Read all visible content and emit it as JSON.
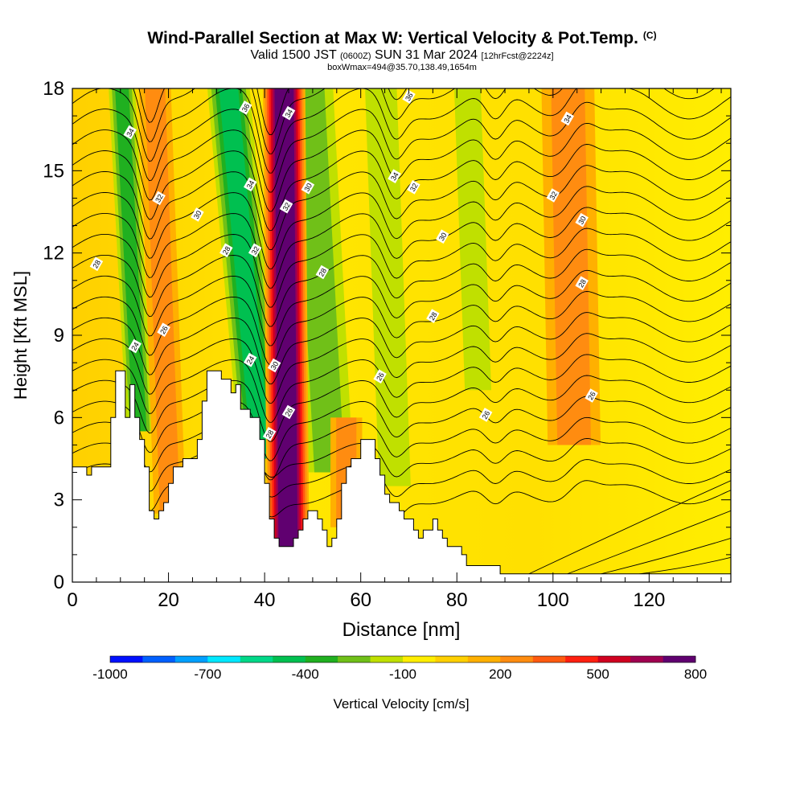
{
  "header": {
    "title": "Wind-Parallel Section at Max W: Vertical Velocity & Pot.Temp.",
    "copyright": "(C)",
    "valid_prefix": "Valid 1500 JST",
    "valid_utc": "(0600Z)",
    "valid_date": "SUN 31 Mar 2024",
    "forecast": "[12hrFcst@2224z]",
    "box_info": "boxWmax=494@35.70,138.49,1654m"
  },
  "chart_data": {
    "type": "contour-section",
    "xlabel": "Distance [nm]",
    "ylabel": "Height [Kft MSL]",
    "xlim": [
      0,
      137
    ],
    "ylim": [
      0,
      18
    ],
    "x_ticks": [
      "0",
      "20",
      "40",
      "60",
      "80",
      "100",
      "120"
    ],
    "x_tick_values": [
      0,
      20,
      40,
      60,
      80,
      100,
      120
    ],
    "y_ticks": [
      "0",
      "3",
      "6",
      "9",
      "12",
      "15",
      "18"
    ],
    "y_tick_values": [
      0,
      3,
      6,
      9,
      12,
      15,
      18
    ],
    "colorbar": {
      "label": "Vertical Velocity [cm/s]",
      "tick_labels": [
        "-1000",
        "-700",
        "-400",
        "-100",
        "200",
        "500",
        "800"
      ],
      "colors": [
        "#0010ff",
        "#0060ff",
        "#00a0ff",
        "#00e8ff",
        "#00d888",
        "#00c050",
        "#20b020",
        "#70c018",
        "#c0e000",
        "#ffee00",
        "#ffd000",
        "#ffb000",
        "#ff8c10",
        "#ff5a10",
        "#ff2010",
        "#d00020",
        "#a00050",
        "#600070"
      ]
    },
    "terrain": [
      [
        0,
        4.2
      ],
      [
        3,
        4.2
      ],
      [
        3,
        3.9
      ],
      [
        4,
        3.9
      ],
      [
        4,
        4.2
      ],
      [
        8,
        4.2
      ],
      [
        8,
        6.0
      ],
      [
        9,
        6.0
      ],
      [
        9,
        7.7
      ],
      [
        11,
        7.7
      ],
      [
        11,
        6.0
      ],
      [
        12,
        6.0
      ],
      [
        12,
        7.2
      ],
      [
        13,
        7.2
      ],
      [
        13,
        6.0
      ],
      [
        14,
        6.0
      ],
      [
        14,
        5.2
      ],
      [
        15,
        5.2
      ],
      [
        15,
        4.2
      ],
      [
        16,
        4.2
      ],
      [
        16,
        2.6
      ],
      [
        17,
        2.6
      ],
      [
        17,
        2.3
      ],
      [
        18,
        2.3
      ],
      [
        18,
        2.6
      ],
      [
        19,
        2.6
      ],
      [
        19,
        2.9
      ],
      [
        20,
        2.9
      ],
      [
        20,
        3.6
      ],
      [
        21,
        3.6
      ],
      [
        21,
        4.2
      ],
      [
        23,
        4.2
      ],
      [
        23,
        4.5
      ],
      [
        26,
        4.5
      ],
      [
        26,
        5.2
      ],
      [
        27,
        5.2
      ],
      [
        27,
        6.6
      ],
      [
        28,
        6.6
      ],
      [
        28,
        7.7
      ],
      [
        31,
        7.7
      ],
      [
        31,
        7.4
      ],
      [
        33,
        7.4
      ],
      [
        33,
        6.9
      ],
      [
        34,
        6.9
      ],
      [
        34,
        7.2
      ],
      [
        35,
        7.2
      ],
      [
        35,
        6.3
      ],
      [
        37,
        6.3
      ],
      [
        37,
        6.0
      ],
      [
        39,
        6.0
      ],
      [
        39,
        5.2
      ],
      [
        40,
        5.2
      ],
      [
        40,
        3.6
      ],
      [
        41,
        3.6
      ],
      [
        41,
        2.3
      ],
      [
        42,
        2.3
      ],
      [
        42,
        1.6
      ],
      [
        43,
        1.6
      ],
      [
        43,
        1.3
      ],
      [
        46,
        1.3
      ],
      [
        46,
        1.6
      ],
      [
        47,
        1.6
      ],
      [
        47,
        1.9
      ],
      [
        48,
        1.9
      ],
      [
        48,
        2.3
      ],
      [
        49,
        2.3
      ],
      [
        49,
        2.6
      ],
      [
        51,
        2.6
      ],
      [
        51,
        2.3
      ],
      [
        52,
        2.3
      ],
      [
        52,
        1.9
      ],
      [
        53,
        1.9
      ],
      [
        53,
        1.3
      ],
      [
        54,
        1.3
      ],
      [
        54,
        1.6
      ],
      [
        55,
        1.6
      ],
      [
        55,
        2.3
      ],
      [
        56,
        2.3
      ],
      [
        56,
        3.6
      ],
      [
        57,
        3.6
      ],
      [
        57,
        4.2
      ],
      [
        58,
        4.2
      ],
      [
        58,
        4.5
      ],
      [
        60,
        4.5
      ],
      [
        60,
        5.2
      ],
      [
        63,
        5.2
      ],
      [
        63,
        4.5
      ],
      [
        64,
        4.5
      ],
      [
        64,
        3.9
      ],
      [
        65,
        3.9
      ],
      [
        65,
        3.2
      ],
      [
        66,
        3.2
      ],
      [
        66,
        2.9
      ],
      [
        68,
        2.9
      ],
      [
        68,
        2.6
      ],
      [
        69,
        2.6
      ],
      [
        69,
        2.3
      ],
      [
        71,
        2.3
      ],
      [
        71,
        1.9
      ],
      [
        72,
        1.9
      ],
      [
        72,
        1.6
      ],
      [
        73,
        1.6
      ],
      [
        73,
        1.9
      ],
      [
        75,
        1.9
      ],
      [
        75,
        2.3
      ],
      [
        76,
        2.3
      ],
      [
        76,
        1.9
      ],
      [
        77,
        1.9
      ],
      [
        77,
        1.6
      ],
      [
        78,
        1.6
      ],
      [
        78,
        1.3
      ],
      [
        81,
        1.3
      ],
      [
        81,
        1.0
      ],
      [
        82,
        1.0
      ],
      [
        82,
        0.6
      ],
      [
        89,
        0.6
      ],
      [
        89,
        0.3
      ],
      [
        137,
        0.3
      ]
    ],
    "updraft_bands": [
      {
        "x": 44.5,
        "width": 4.0,
        "slope": -0.05,
        "intensity": 1.0,
        "top": 18,
        "bottom": 1.2
      },
      {
        "x": 19,
        "width": 3.0,
        "slope": -0.2,
        "intensity": 0.28,
        "top": 18,
        "bottom": 2.5
      },
      {
        "x": 104,
        "width": 5.0,
        "slope": -0.1,
        "intensity": 0.22,
        "top": 18,
        "bottom": 5
      },
      {
        "x": 57,
        "width": 3.0,
        "slope": 0,
        "intensity": 0.2,
        "top": 6,
        "bottom": 2
      }
    ],
    "downdraft_bands": [
      {
        "x": 37,
        "width": 4.0,
        "slope": -0.5,
        "intensity": 0.8,
        "top": 18,
        "bottom": 4.5
      },
      {
        "x": 13,
        "width": 2.5,
        "slope": -0.3,
        "intensity": 0.55,
        "top": 18,
        "bottom": 5.5
      },
      {
        "x": 52,
        "width": 4.5,
        "slope": -0.3,
        "intensity": 0.35,
        "top": 18,
        "bottom": 4
      },
      {
        "x": 66,
        "width": 3.0,
        "slope": -0.2,
        "intensity": 0.25,
        "top": 18,
        "bottom": 3.5
      },
      {
        "x": 84,
        "width": 2.5,
        "slope": -0.2,
        "intensity": 0.15,
        "top": 18,
        "bottom": 7
      }
    ],
    "contour_labels": [
      {
        "text": "34",
        "x": 12,
        "y": 16.4
      },
      {
        "text": "32",
        "x": 18,
        "y": 14.0
      },
      {
        "text": "30",
        "x": 26,
        "y": 13.4
      },
      {
        "text": "28",
        "x": 5,
        "y": 11.6
      },
      {
        "text": "26",
        "x": 19,
        "y": 9.2
      },
      {
        "text": "24",
        "x": 13,
        "y": 8.6
      },
      {
        "text": "36",
        "x": 36,
        "y": 17.3
      },
      {
        "text": "34",
        "x": 37,
        "y": 14.5
      },
      {
        "text": "28",
        "x": 32,
        "y": 12.1
      },
      {
        "text": "32",
        "x": 38,
        "y": 12.1
      },
      {
        "text": "24",
        "x": 37,
        "y": 8.1
      },
      {
        "text": "28",
        "x": 41,
        "y": 5.4
      },
      {
        "text": "34",
        "x": 45,
        "y": 17.1
      },
      {
        "text": "32",
        "x": 44.5,
        "y": 13.7
      },
      {
        "text": "30",
        "x": 42,
        "y": 7.9
      },
      {
        "text": "26",
        "x": 45,
        "y": 6.2
      },
      {
        "text": "30",
        "x": 49,
        "y": 14.4
      },
      {
        "text": "28",
        "x": 52,
        "y": 11.3
      },
      {
        "text": "36",
        "x": 70,
        "y": 17.7
      },
      {
        "text": "34",
        "x": 67,
        "y": 14.8
      },
      {
        "text": "32",
        "x": 71,
        "y": 14.4
      },
      {
        "text": "30",
        "x": 77,
        "y": 12.6
      },
      {
        "text": "28",
        "x": 75,
        "y": 9.7
      },
      {
        "text": "26",
        "x": 64,
        "y": 7.5
      },
      {
        "text": "26",
        "x": 86,
        "y": 6.1
      },
      {
        "text": "34",
        "x": 103,
        "y": 16.9
      },
      {
        "text": "32",
        "x": 100,
        "y": 14.1
      },
      {
        "text": "30",
        "x": 106,
        "y": 13.2
      },
      {
        "text": "28",
        "x": 106,
        "y": 10.9
      },
      {
        "text": "26",
        "x": 108,
        "y": 6.8
      }
    ]
  }
}
